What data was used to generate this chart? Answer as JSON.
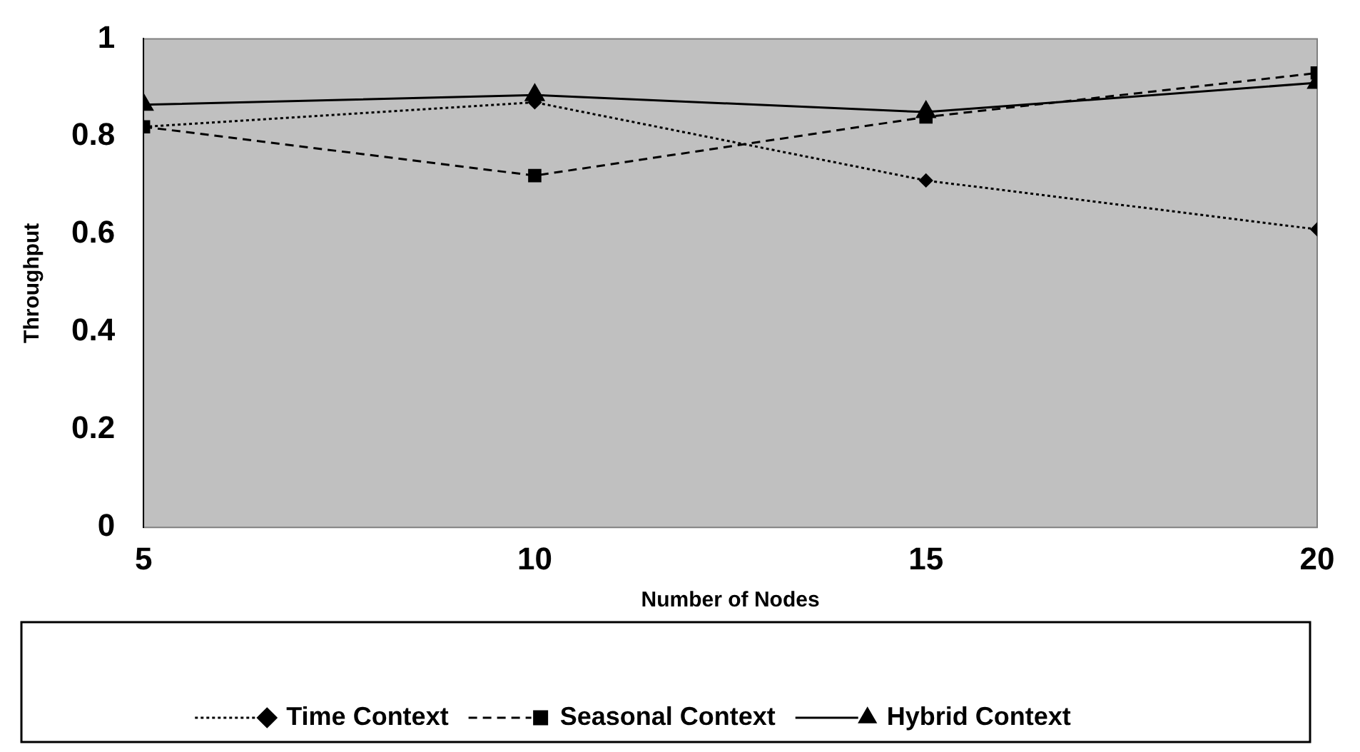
{
  "chart_data": {
    "type": "line",
    "xlabel": "Number of Nodes",
    "ylabel": "Throughput",
    "x": [
      5,
      10,
      15,
      20
    ],
    "series": [
      {
        "name": "Time Context",
        "color": "#000000",
        "values": [
          0.82,
          0.87,
          0.71,
          0.61
        ],
        "marker": "diamond",
        "line_style": "dotted"
      },
      {
        "name": "Seasonal Context",
        "color": "#000000",
        "values": [
          0.82,
          0.72,
          0.84,
          0.93
        ],
        "marker": "square",
        "line_style": "dashed"
      },
      {
        "name": "Hybrid Context",
        "color": "#000000",
        "values": [
          0.865,
          0.885,
          0.85,
          0.91
        ],
        "marker": "triangle",
        "line_style": "solid"
      }
    ],
    "xlim": [
      5,
      20
    ],
    "xticks": [
      5,
      10,
      15,
      20
    ],
    "ylim": [
      0,
      1
    ],
    "yticks": [
      0,
      0.2,
      0.4,
      0.6,
      0.8,
      1
    ],
    "grid": false,
    "legend": "bottom"
  }
}
